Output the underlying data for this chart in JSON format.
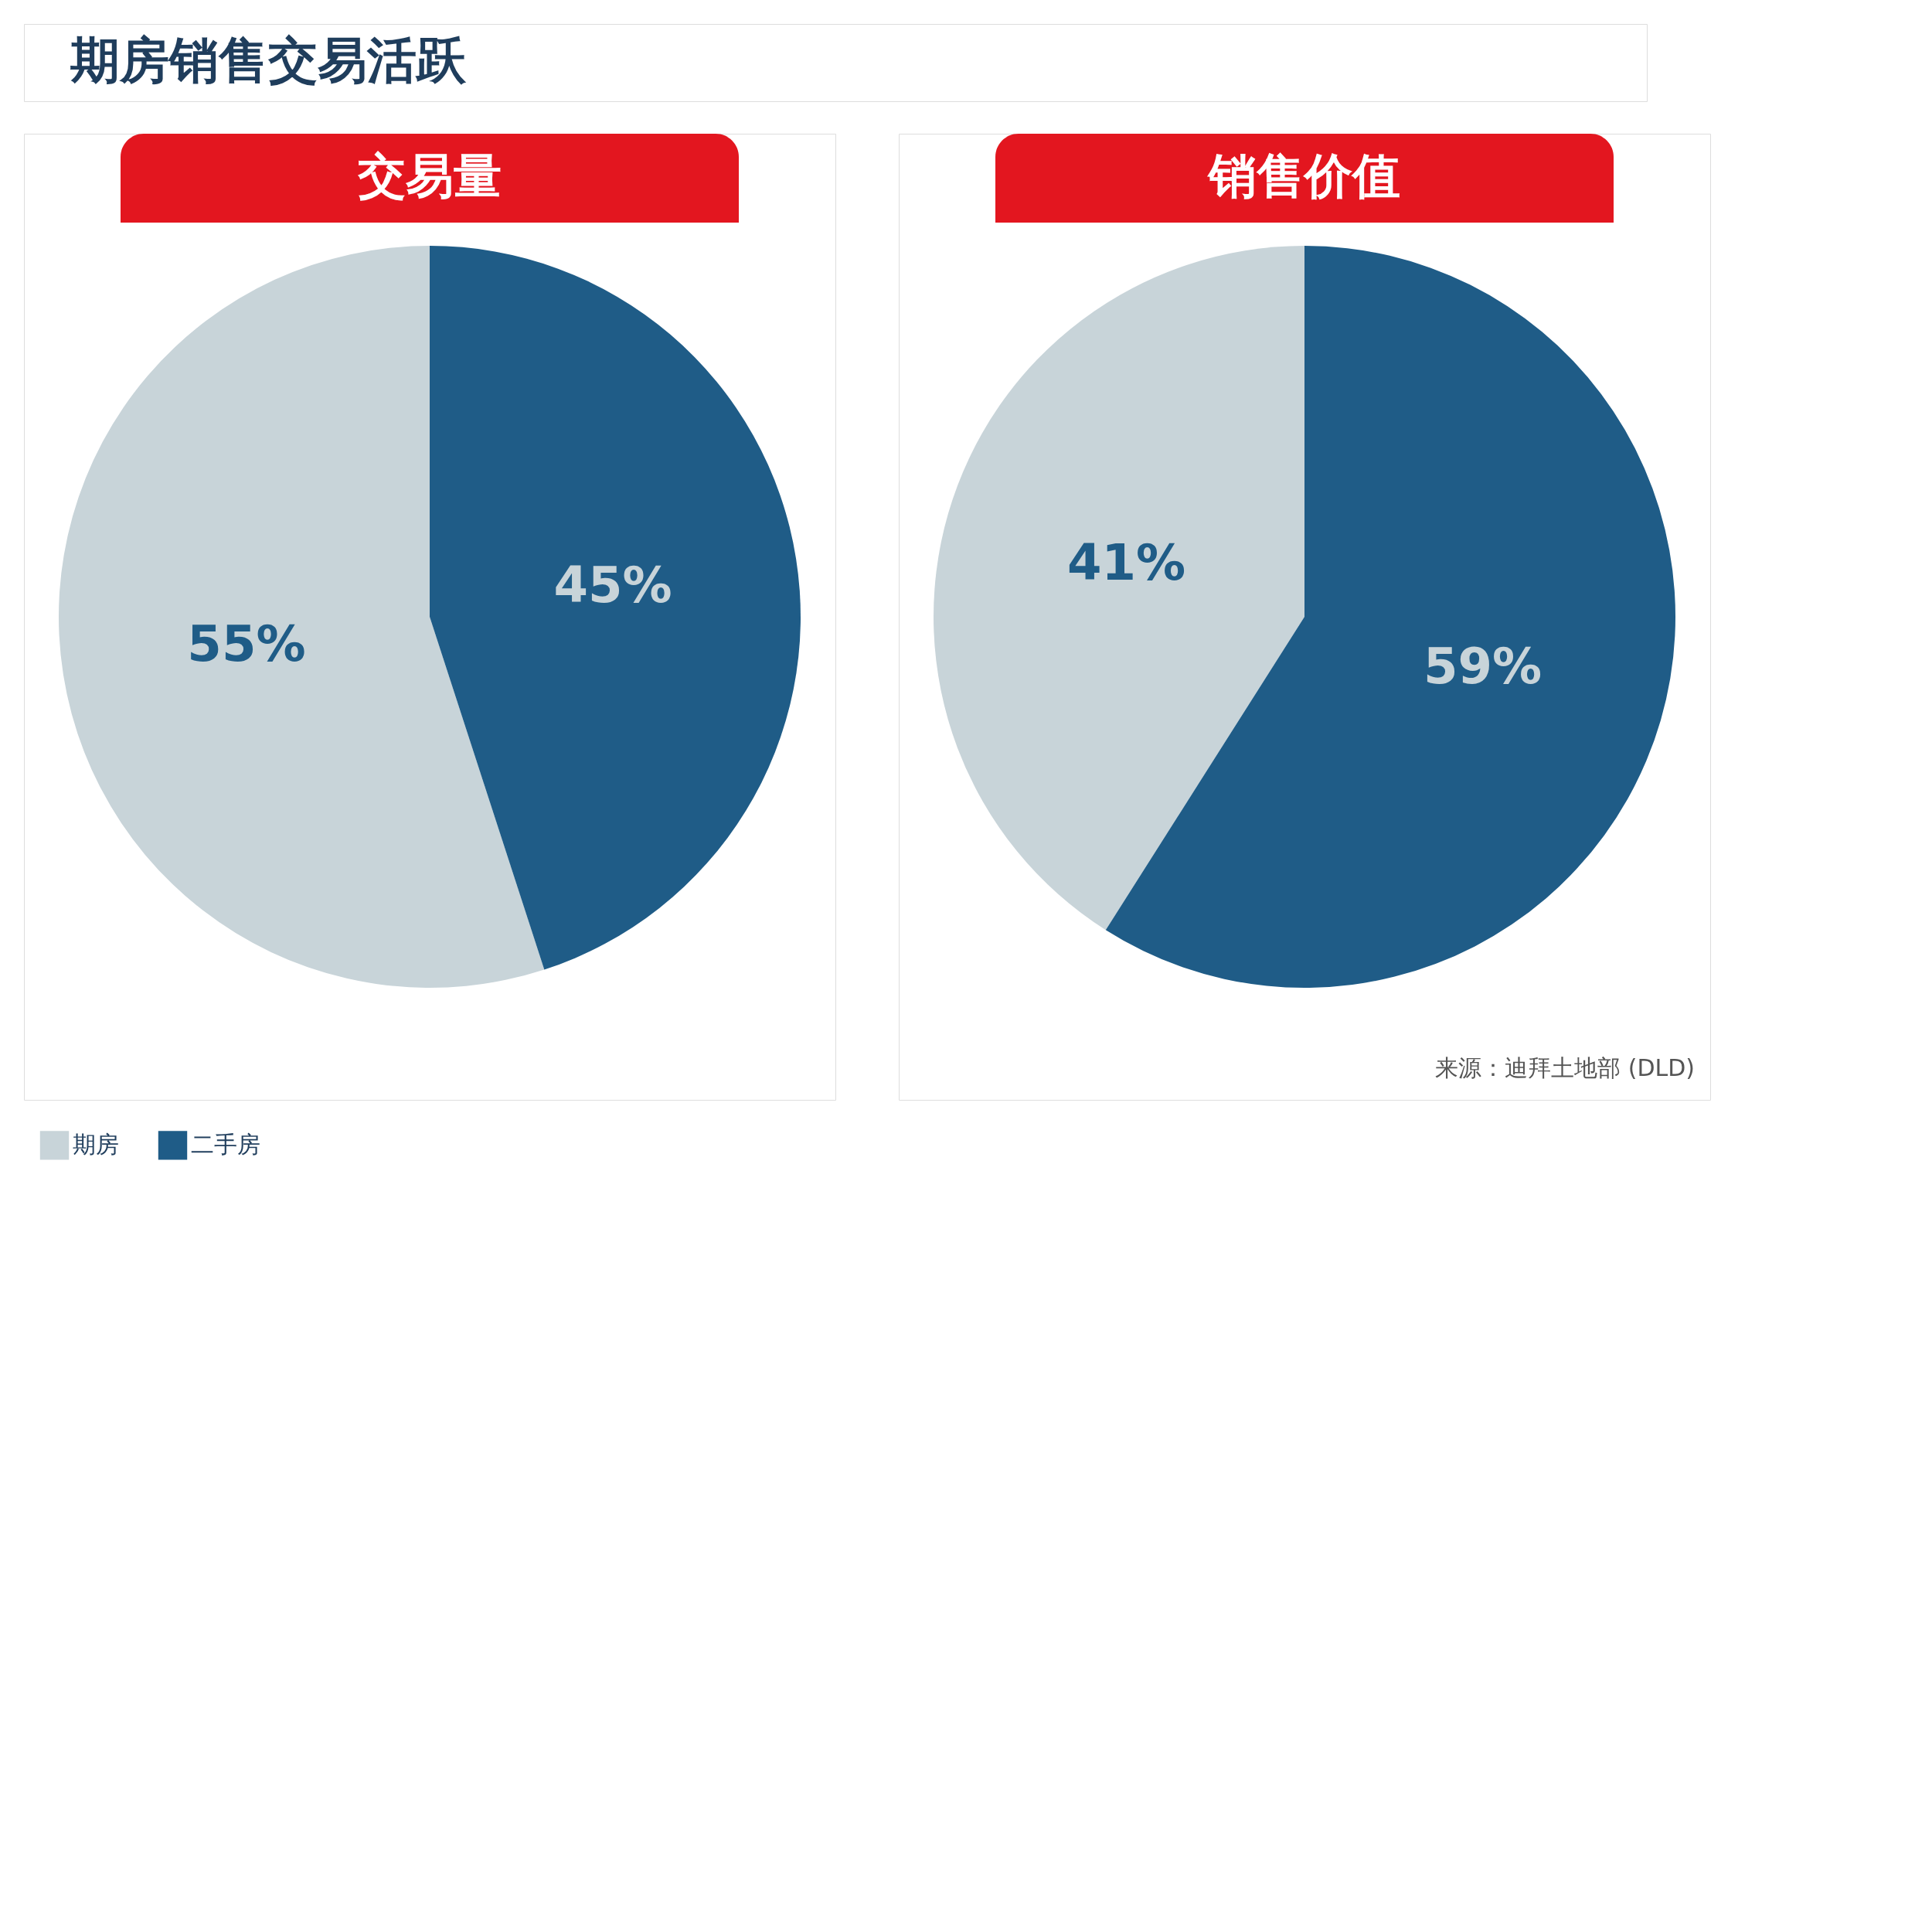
{
  "chart_data": [
    {
      "type": "other",
      "title": "期房销售交易活跃"
    },
    {
      "type": "pie",
      "title": "交易量",
      "categories": [
        "期房",
        "二手房"
      ],
      "values": [
        55,
        45
      ],
      "colors": [
        "#c8d4d9",
        "#1f5c87"
      ],
      "value_labels": [
        "55%",
        "45%"
      ],
      "legend": "bottom left"
    },
    {
      "type": "pie",
      "title": "销售价值",
      "categories": [
        null,
        null
      ],
      "values": [
        41,
        59
      ],
      "colors": [
        "#c8d4d9",
        "#1f5c87"
      ],
      "value_labels": [
        "41%",
        "59%"
      ],
      "annotations": [
        "来源：迪拜土地部 (DLD)"
      ]
    }
  ]
}
